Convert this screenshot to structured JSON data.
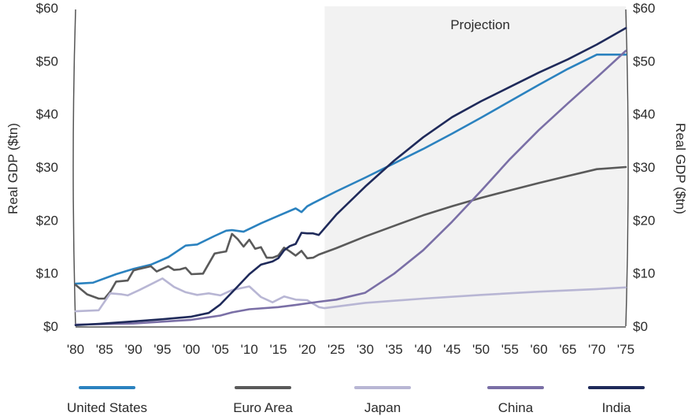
{
  "chart_data": {
    "type": "line",
    "projection_label": "Projection",
    "projection_start": 2023,
    "ylabel_left": "Real GDP ($tn)",
    "ylabel_right": "Real GDP ($tn)",
    "ylim": [
      0,
      60
    ],
    "xlim": [
      1980,
      2075
    ],
    "y_ticks": [
      "$0",
      "$10",
      "$20",
      "$30",
      "$40",
      "$50",
      "$60"
    ],
    "x_ticks": [
      "'80",
      "'85",
      "'90",
      "'95",
      "'00",
      "'05",
      "'10",
      "'15",
      "'20",
      "'25",
      "'30",
      "'35",
      "'40",
      "'45",
      "'50",
      "'55",
      "'60",
      "'65",
      "'70",
      "'75"
    ],
    "colors": {
      "United States": "#2b82bf",
      "Euro Area": "#5a5a5a",
      "Japan": "#b8b6d4",
      "China": "#7a6fa6",
      "India": "#1f2a5a"
    },
    "series": [
      {
        "name": "United States",
        "x": [
          1980,
          1983,
          1987,
          1990,
          1993,
          1996,
          1999,
          2001,
          2004,
          2006,
          2007,
          2009,
          2012,
          2015,
          2018,
          2019,
          2020,
          2021,
          2025,
          2030,
          2035,
          2040,
          2045,
          2050,
          2055,
          2060,
          2065,
          2070,
          2075
        ],
        "values": [
          8.0,
          8.2,
          9.8,
          10.8,
          11.6,
          13.0,
          15.2,
          15.4,
          17.0,
          18.0,
          18.1,
          17.8,
          19.4,
          20.8,
          22.2,
          21.5,
          22.6,
          23.2,
          25.4,
          28.0,
          30.7,
          33.4,
          36.3,
          39.3,
          42.4,
          45.5,
          48.5,
          51.2,
          51.2
        ]
      },
      {
        "name": "Euro Area",
        "x": [
          1980,
          1982,
          1984,
          1985,
          1986,
          1987,
          1989,
          1990,
          1991,
          1993,
          1994,
          1996,
          1997,
          1998,
          1999,
          2000,
          2002,
          2004,
          2005,
          2006,
          2007,
          2008,
          2009,
          2010,
          2011,
          2012,
          2013,
          2014,
          2015,
          2016,
          2017,
          2018,
          2019,
          2020,
          2021,
          2022,
          2025,
          2030,
          2035,
          2040,
          2045,
          2050,
          2055,
          2060,
          2065,
          2070,
          2075
        ],
        "values": [
          7.8,
          6.0,
          5.2,
          5.2,
          6.5,
          8.4,
          8.6,
          10.5,
          10.8,
          11.3,
          10.3,
          11.3,
          10.6,
          10.7,
          11.0,
          9.8,
          9.9,
          13.7,
          13.9,
          14.1,
          17.4,
          16.4,
          15.0,
          16.3,
          14.6,
          14.9,
          12.9,
          12.9,
          13.3,
          14.8,
          14.1,
          13.3,
          14.2,
          12.8,
          12.9,
          13.5,
          14.7,
          16.9,
          18.9,
          20.9,
          22.6,
          24.2,
          25.6,
          27.0,
          28.3,
          29.6,
          30.0
        ]
      },
      {
        "name": "Japan",
        "x": [
          1980,
          1984,
          1986,
          1988,
          1989,
          1991,
          1993,
          1995,
          1997,
          1999,
          2001,
          2003,
          2005,
          2007,
          2010,
          2012,
          2014,
          2016,
          2018,
          2020,
          2022,
          2023,
          2030,
          2040,
          2050,
          2060,
          2070,
          2075
        ],
        "values": [
          2.8,
          3.0,
          6.2,
          6.0,
          5.8,
          6.8,
          7.9,
          9.0,
          7.4,
          6.4,
          5.9,
          6.2,
          5.8,
          6.8,
          7.5,
          5.5,
          4.5,
          5.6,
          5.0,
          4.9,
          3.6,
          3.4,
          4.4,
          5.2,
          5.9,
          6.5,
          7.0,
          7.3
        ]
      },
      {
        "name": "China",
        "x": [
          1980,
          1990,
          2000,
          2005,
          2007,
          2010,
          2015,
          2018,
          2020,
          2022,
          2025,
          2030,
          2035,
          2040,
          2045,
          2050,
          2055,
          2060,
          2065,
          2070,
          2075
        ],
        "values": [
          0.3,
          0.5,
          1.2,
          2.0,
          2.6,
          3.2,
          3.6,
          4.0,
          4.3,
          4.6,
          5.0,
          6.3,
          9.9,
          14.3,
          19.7,
          25.5,
          31.5,
          37.0,
          42.0,
          46.9,
          51.9
        ]
      },
      {
        "name": "India",
        "x": [
          1980,
          1985,
          1990,
          1995,
          2000,
          2003,
          2005,
          2008,
          2010,
          2012,
          2014,
          2015,
          2016,
          2017,
          2018,
          2019,
          2020,
          2021,
          2022,
          2025,
          2030,
          2035,
          2040,
          2045,
          2050,
          2055,
          2060,
          2065,
          2070,
          2075
        ],
        "values": [
          0.2,
          0.5,
          0.9,
          1.3,
          1.8,
          2.5,
          4.1,
          7.5,
          9.8,
          11.6,
          12.2,
          12.8,
          14.3,
          15.1,
          15.5,
          17.6,
          17.5,
          17.5,
          17.2,
          21.0,
          26.3,
          31.2,
          35.6,
          39.4,
          42.4,
          45.1,
          47.8,
          50.3,
          53.1,
          56.2
        ]
      }
    ]
  }
}
